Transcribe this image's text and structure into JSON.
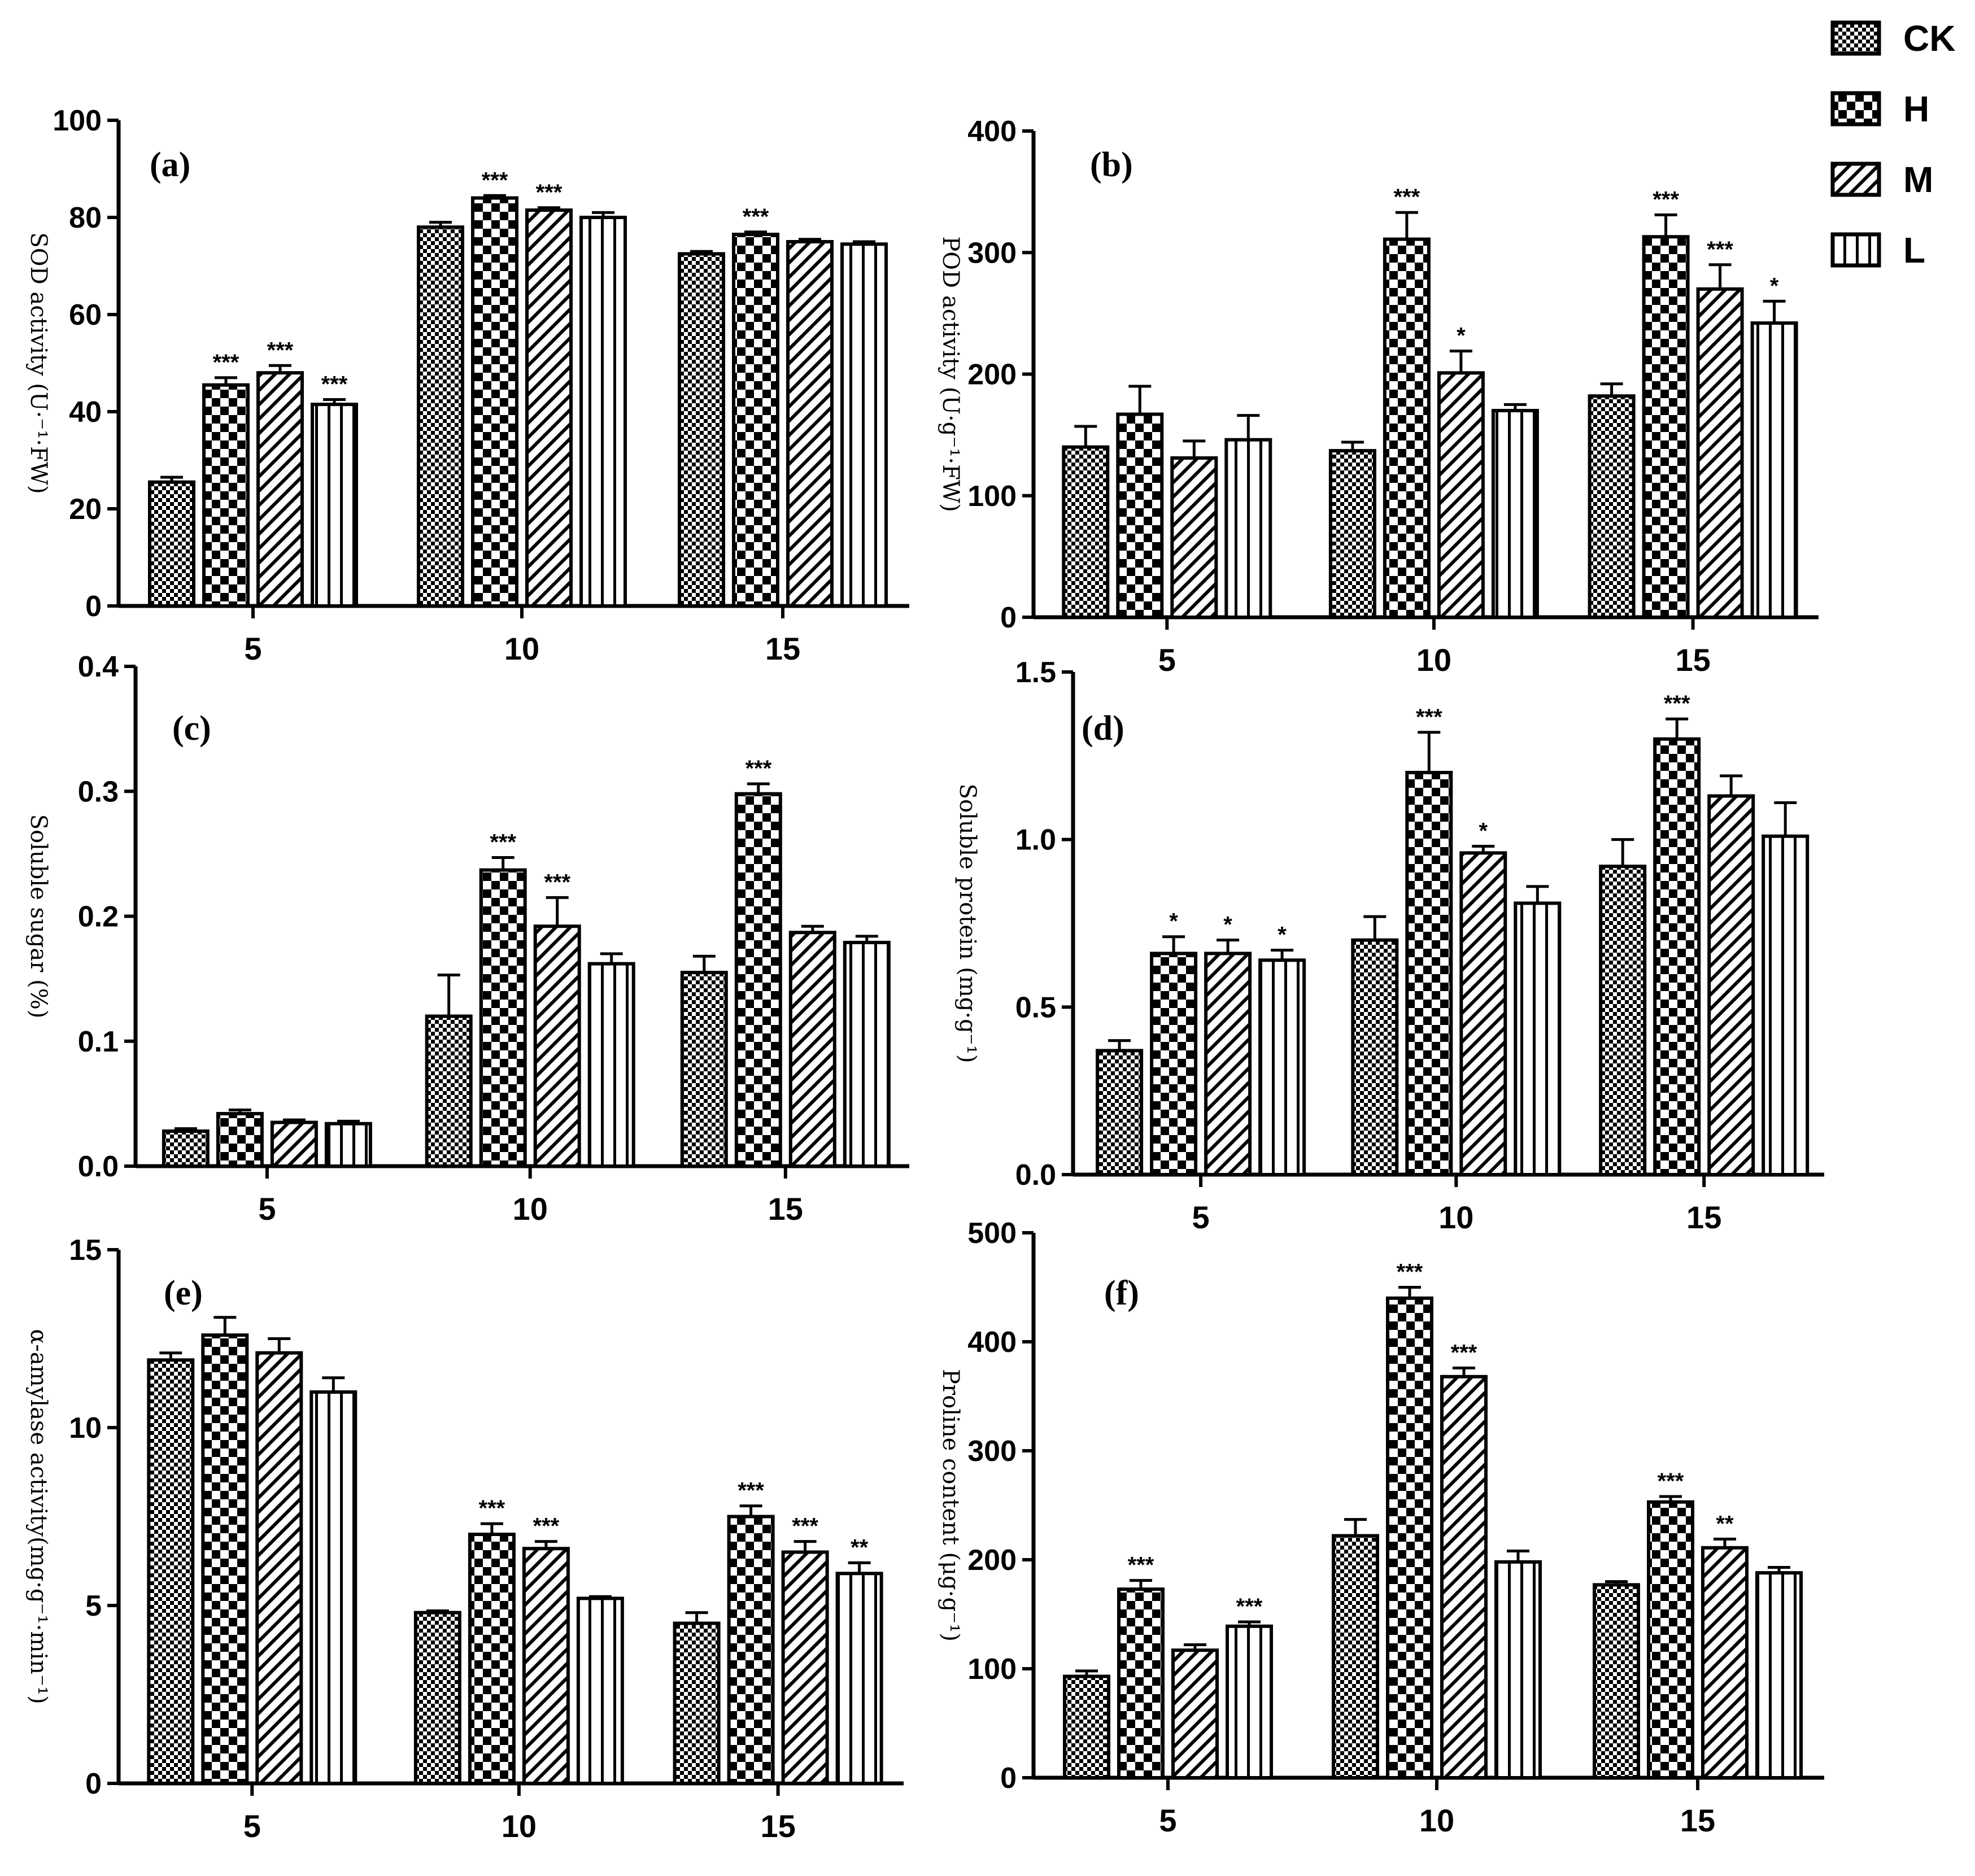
{
  "figure": {
    "legend": [
      {
        "key": "CK",
        "label": "CK",
        "pattern": "ck"
      },
      {
        "key": "H",
        "label": "H",
        "pattern": "h"
      },
      {
        "key": "M",
        "label": "M",
        "pattern": "m"
      },
      {
        "key": "L",
        "label": "L",
        "pattern": "l"
      }
    ]
  },
  "chart_data": [
    {
      "id": "a",
      "type": "bar",
      "panel_label": "(a)",
      "ylabel": "SOD activity (U·⁻¹·FW)",
      "categories": [
        "5",
        "10",
        "15"
      ],
      "ylim": [
        0,
        100
      ],
      "yticks": [
        0,
        20,
        40,
        60,
        80,
        100
      ],
      "ytick_labels": [
        "0",
        "20",
        "40",
        "60",
        "80",
        "100"
      ],
      "series": [
        {
          "name": "CK",
          "values": [
            25.5,
            78,
            72.5
          ],
          "errors": [
            1,
            1,
            0.5
          ],
          "sig": [
            "",
            "",
            ""
          ]
        },
        {
          "name": "H",
          "values": [
            45.5,
            84,
            76.5
          ],
          "errors": [
            1.5,
            0.5,
            0.5
          ],
          "sig": [
            "***",
            "***",
            "***"
          ]
        },
        {
          "name": "M",
          "values": [
            48,
            81.5,
            75
          ],
          "errors": [
            1.5,
            0.5,
            0.5
          ],
          "sig": [
            "***",
            "***",
            ""
          ]
        },
        {
          "name": "L",
          "values": [
            41.5,
            80,
            74.5
          ],
          "errors": [
            1,
            1,
            0.5
          ],
          "sig": [
            "***",
            "",
            ""
          ]
        }
      ]
    },
    {
      "id": "b",
      "type": "bar",
      "panel_label": "(b)",
      "ylabel": "POD activity (U·g⁻¹·FW)",
      "categories": [
        "5",
        "10",
        "15"
      ],
      "ylim": [
        0,
        400
      ],
      "yticks": [
        0,
        100,
        200,
        300,
        400
      ],
      "ytick_labels": [
        "0",
        "100",
        "200",
        "300",
        "400"
      ],
      "series": [
        {
          "name": "CK",
          "values": [
            140,
            137,
            182
          ],
          "errors": [
            17,
            7,
            10
          ],
          "sig": [
            "",
            "",
            ""
          ]
        },
        {
          "name": "H",
          "values": [
            167,
            311,
            313
          ],
          "errors": [
            23,
            22,
            18
          ],
          "sig": [
            "",
            "***",
            "***"
          ]
        },
        {
          "name": "M",
          "values": [
            131,
            201,
            270
          ],
          "errors": [
            14,
            18,
            20
          ],
          "sig": [
            "",
            "*",
            "***"
          ]
        },
        {
          "name": "L",
          "values": [
            146,
            170,
            242
          ],
          "errors": [
            20,
            5,
            18
          ],
          "sig": [
            "",
            "",
            "*"
          ]
        }
      ]
    },
    {
      "id": "c",
      "type": "bar",
      "panel_label": "(c)",
      "ylabel": "Soluble sugar (%)",
      "categories": [
        "5",
        "10",
        "15"
      ],
      "ylim": [
        0,
        0.4
      ],
      "yticks": [
        0,
        0.1,
        0.2,
        0.3,
        0.4
      ],
      "ytick_labels": [
        "0.0",
        "0.1",
        "0.2",
        "0.3",
        "0.4"
      ],
      "series": [
        {
          "name": "CK",
          "values": [
            0.028,
            0.12,
            0.155
          ],
          "errors": [
            0.002,
            0.033,
            0.013
          ],
          "sig": [
            "",
            "",
            ""
          ]
        },
        {
          "name": "H",
          "values": [
            0.042,
            0.237,
            0.298
          ],
          "errors": [
            0.003,
            0.01,
            0.008
          ],
          "sig": [
            "",
            "***",
            "***"
          ]
        },
        {
          "name": "M",
          "values": [
            0.035,
            0.192,
            0.187
          ],
          "errors": [
            0.002,
            0.023,
            0.005
          ],
          "sig": [
            "",
            "***",
            ""
          ]
        },
        {
          "name": "L",
          "values": [
            0.034,
            0.162,
            0.179
          ],
          "errors": [
            0.002,
            0.008,
            0.005
          ],
          "sig": [
            "",
            "",
            ""
          ]
        }
      ]
    },
    {
      "id": "d",
      "type": "bar",
      "panel_label": "(d)",
      "ylabel": "Soluble protein (mg·g⁻¹)",
      "categories": [
        "5",
        "10",
        "15"
      ],
      "ylim": [
        0,
        1.5
      ],
      "yticks": [
        0,
        0.5,
        1.0,
        1.5
      ],
      "ytick_labels": [
        "0.0",
        "0.5",
        "1.0",
        "1.5"
      ],
      "series": [
        {
          "name": "CK",
          "values": [
            0.37,
            0.7,
            0.92
          ],
          "errors": [
            0.03,
            0.07,
            0.08
          ],
          "sig": [
            "",
            "",
            ""
          ]
        },
        {
          "name": "H",
          "values": [
            0.66,
            1.2,
            1.3
          ],
          "errors": [
            0.05,
            0.12,
            0.06
          ],
          "sig": [
            "*",
            "***",
            "***"
          ]
        },
        {
          "name": "M",
          "values": [
            0.66,
            0.96,
            1.13
          ],
          "errors": [
            0.04,
            0.02,
            0.06
          ],
          "sig": [
            "*",
            "*",
            ""
          ]
        },
        {
          "name": "L",
          "values": [
            0.64,
            0.81,
            1.01
          ],
          "errors": [
            0.03,
            0.05,
            0.1
          ],
          "sig": [
            "*",
            "",
            ""
          ]
        }
      ]
    },
    {
      "id": "e",
      "type": "bar",
      "panel_label": "(e)",
      "ylabel": "α-amylase activity(mg·g⁻¹·min⁻¹)",
      "categories": [
        "5",
        "10",
        "15"
      ],
      "ylim": [
        0,
        15
      ],
      "yticks": [
        0,
        5,
        10,
        15
      ],
      "ytick_labels": [
        "0",
        "5",
        "10",
        "15"
      ],
      "series": [
        {
          "name": "CK",
          "values": [
            11.9,
            4.8,
            4.5
          ],
          "errors": [
            0.2,
            0.05,
            0.3
          ],
          "sig": [
            "",
            "",
            ""
          ]
        },
        {
          "name": "H",
          "values": [
            12.6,
            7.0,
            7.5
          ],
          "errors": [
            0.5,
            0.3,
            0.3
          ],
          "sig": [
            "",
            "***",
            "***"
          ]
        },
        {
          "name": "M",
          "values": [
            12.1,
            6.6,
            6.5
          ],
          "errors": [
            0.4,
            0.2,
            0.3
          ],
          "sig": [
            "",
            "***",
            "***"
          ]
        },
        {
          "name": "L",
          "values": [
            11.0,
            5.2,
            5.9
          ],
          "errors": [
            0.4,
            0.05,
            0.3
          ],
          "sig": [
            "",
            "",
            "**"
          ]
        }
      ]
    },
    {
      "id": "f",
      "type": "bar",
      "panel_label": "(f)",
      "ylabel": "Proline content (μg·g⁻¹)",
      "categories": [
        "5",
        "10",
        "15"
      ],
      "ylim": [
        0,
        500
      ],
      "yticks": [
        0,
        100,
        200,
        300,
        400,
        500
      ],
      "ytick_labels": [
        "0",
        "100",
        "200",
        "300",
        "400",
        "500"
      ],
      "series": [
        {
          "name": "CK",
          "values": [
            93,
            222,
            177
          ],
          "errors": [
            5,
            15,
            3
          ],
          "sig": [
            "",
            "",
            ""
          ]
        },
        {
          "name": "H",
          "values": [
            173,
            440,
            253
          ],
          "errors": [
            8,
            10,
            5
          ],
          "sig": [
            "***",
            "***",
            "***"
          ]
        },
        {
          "name": "M",
          "values": [
            117,
            368,
            211
          ],
          "errors": [
            5,
            8,
            8
          ],
          "sig": [
            "",
            "***",
            "**"
          ]
        },
        {
          "name": "L",
          "values": [
            139,
            198,
            188
          ],
          "errors": [
            4,
            10,
            5
          ],
          "sig": [
            "***",
            "",
            ""
          ]
        }
      ]
    }
  ]
}
